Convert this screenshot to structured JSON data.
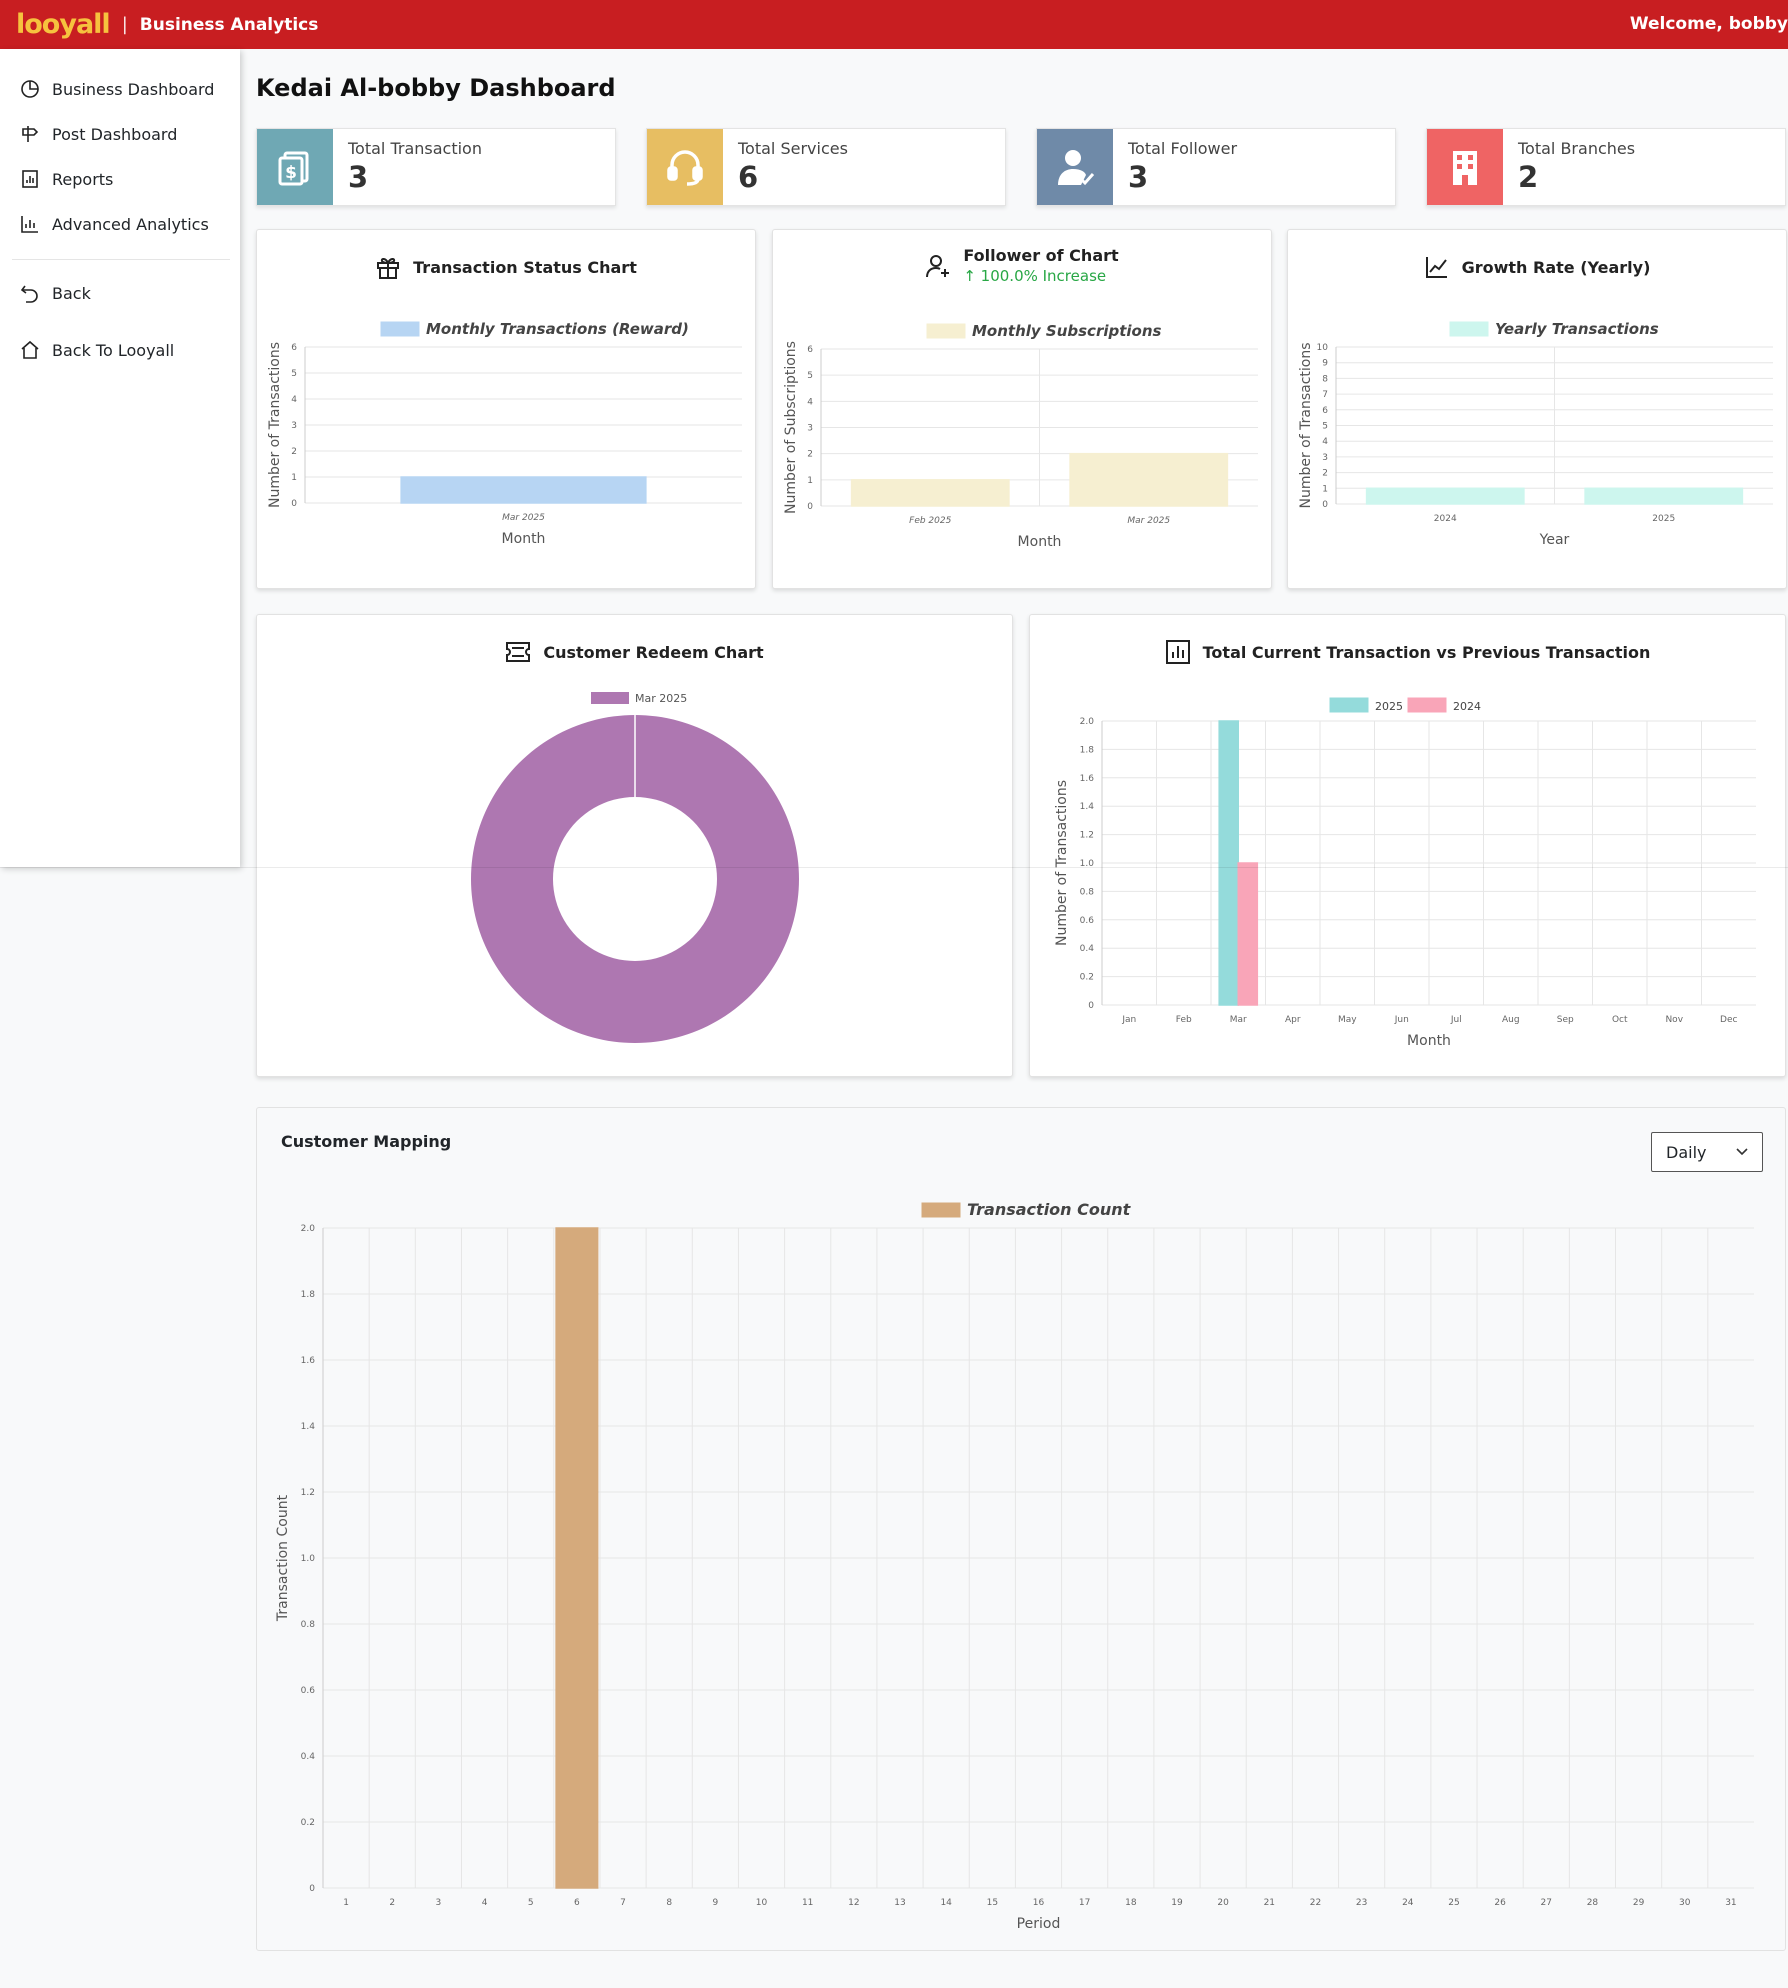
{
  "header": {
    "logo": "looyall",
    "separator": "|",
    "brand": "Business Analytics",
    "welcome": "Welcome, bobby"
  },
  "sidebar": {
    "items": [
      {
        "label": "Business Dashboard",
        "icon": "pie-chart-icon"
      },
      {
        "label": "Post Dashboard",
        "icon": "signpost-icon"
      },
      {
        "label": "Reports",
        "icon": "report-icon"
      },
      {
        "label": "Advanced Analytics",
        "icon": "bar-chart-icon"
      },
      {
        "label": "Back",
        "icon": "undo-icon"
      },
      {
        "label": "Back To Looyall",
        "icon": "home-icon"
      }
    ]
  },
  "page": {
    "title": "Kedai Al-bobby Dashboard"
  },
  "stats": [
    {
      "label": "Total Transaction",
      "value": "3",
      "color": "#6fa8b4",
      "icon": "money-icon"
    },
    {
      "label": "Total Services",
      "value": "6",
      "color": "#e7be62",
      "icon": "headset-icon"
    },
    {
      "label": "Total Follower",
      "value": "3",
      "color": "#6f8aa8",
      "icon": "user-check-icon"
    },
    {
      "label": "Total Branches",
      "value": "2",
      "color": "#ef6464",
      "icon": "building-icon"
    }
  ],
  "cards": {
    "transaction_status": {
      "title": "Transaction Status Chart",
      "icon": "gift-icon"
    },
    "follower": {
      "title": "Follower of Chart",
      "subtitle": "↑ 100.0% Increase",
      "icon": "user-plus-icon"
    },
    "growth": {
      "title": "Growth Rate (Yearly)",
      "icon": "line-chart-icon"
    },
    "redeem": {
      "title": "Customer Redeem Chart",
      "icon": "ticket-icon"
    },
    "comparison": {
      "title": "Total Current Transaction vs Previous Transaction",
      "icon": "bar-chart-icon"
    },
    "mapping": {
      "title": "Customer Mapping",
      "select_value": "Daily"
    }
  },
  "chart_data": [
    {
      "id": "transaction_status",
      "type": "bar",
      "categories": [
        "Mar 2025"
      ],
      "series": [
        {
          "name": "Monthly Transactions (Reward)",
          "values": [
            1
          ],
          "color": "#b7d5f3"
        }
      ],
      "xlabel": "Month",
      "ylabel": "Number of Transactions",
      "ylim": [
        0,
        6
      ],
      "yticks": [
        "0",
        "1",
        "2",
        "3",
        "4",
        "5",
        "6"
      ]
    },
    {
      "id": "follower",
      "type": "bar",
      "categories": [
        "Feb 2025",
        "Mar 2025"
      ],
      "series": [
        {
          "name": "Monthly Subscriptions",
          "values": [
            1,
            2
          ],
          "color": "#f6efd1"
        }
      ],
      "xlabel": "Month",
      "ylabel": "Number of Subscriptions",
      "ylim": [
        0,
        6
      ],
      "yticks": [
        "0",
        "1",
        "2",
        "3",
        "4",
        "5",
        "6"
      ]
    },
    {
      "id": "growth",
      "type": "bar",
      "categories": [
        "2024",
        "2025"
      ],
      "series": [
        {
          "name": "Yearly Transactions",
          "values": [
            1,
            1
          ],
          "color": "#cdf6ee"
        }
      ],
      "xlabel": "Year",
      "ylabel": "Number of Transactions",
      "ylim": [
        0,
        10
      ],
      "yticks": [
        "0",
        "1",
        "2",
        "3",
        "4",
        "5",
        "6",
        "7",
        "8",
        "9",
        "10"
      ]
    },
    {
      "id": "redeem",
      "type": "pie",
      "donut": true,
      "categories": [
        "Mar 2025"
      ],
      "values": [
        1
      ],
      "color": "#ae77b1"
    },
    {
      "id": "comparison",
      "type": "bar",
      "categories": [
        "Jan",
        "Feb",
        "Mar",
        "Apr",
        "May",
        "Jun",
        "Jul",
        "Aug",
        "Sep",
        "Oct",
        "Nov",
        "Dec"
      ],
      "series": [
        {
          "name": "2025",
          "values": [
            0,
            0,
            2,
            0,
            0,
            0,
            0,
            0,
            0,
            0,
            0,
            0
          ],
          "color": "#94dbdb"
        },
        {
          "name": "2024",
          "values": [
            0,
            0,
            1,
            0,
            0,
            0,
            0,
            0,
            0,
            0,
            0,
            0
          ],
          "color": "#f9a5b8"
        }
      ],
      "xlabel": "Month",
      "ylabel": "Number of Transactions",
      "ylim": [
        0,
        2
      ],
      "yticks": [
        "0",
        "0.2",
        "0.4",
        "0.6",
        "0.8",
        "1.0",
        "1.2",
        "1.4",
        "1.6",
        "1.8",
        "2.0"
      ]
    },
    {
      "id": "mapping",
      "type": "bar",
      "categories": [
        "1",
        "2",
        "3",
        "4",
        "5",
        "6",
        "7",
        "8",
        "9",
        "10",
        "11",
        "12",
        "13",
        "14",
        "15",
        "16",
        "17",
        "18",
        "19",
        "20",
        "21",
        "22",
        "23",
        "24",
        "25",
        "26",
        "27",
        "28",
        "29",
        "30",
        "31"
      ],
      "series": [
        {
          "name": "Transaction Count",
          "values": [
            0,
            0,
            0,
            0,
            0,
            2,
            0,
            0,
            0,
            0,
            0,
            0,
            0,
            0,
            0,
            0,
            0,
            0,
            0,
            0,
            0,
            0,
            0,
            0,
            0,
            0,
            0,
            0,
            0,
            0,
            0
          ],
          "color": "#d5aa7c"
        }
      ],
      "xlabel": "Period",
      "ylabel": "Transaction Count",
      "ylim": [
        0,
        2
      ],
      "yticks": [
        "0",
        "0.2",
        "0.4",
        "0.6",
        "0.8",
        "1.0",
        "1.2",
        "1.4",
        "1.6",
        "1.8",
        "2.0"
      ]
    }
  ]
}
